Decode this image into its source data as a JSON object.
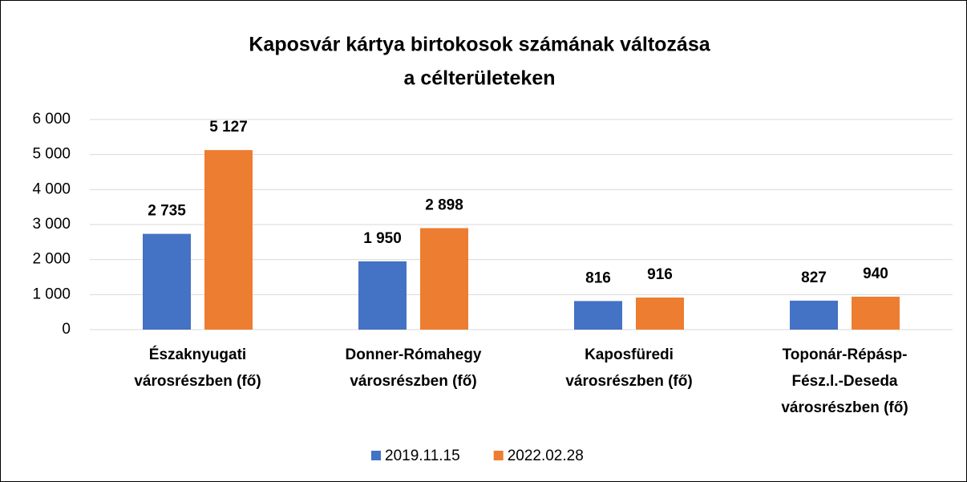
{
  "chart_data": {
    "type": "bar",
    "title": [
      "Kaposvár kártya birtokosok számának változása",
      "a célterületeken"
    ],
    "categories": [
      [
        "Északnyugati",
        "városrészben (fő)"
      ],
      [
        "Donner-Rómahegy",
        "városrészben  (fő)"
      ],
      [
        "Kaposfüredi",
        "városrészben  (fő)"
      ],
      [
        "Toponár-Répásp-",
        "Fész.l.-Deseda",
        "városrészben  (fő)"
      ]
    ],
    "series": [
      {
        "name": "2019.11.15",
        "color": "#4472c4",
        "values": [
          2735,
          1950,
          816,
          827
        ],
        "value_labels": [
          "2 735",
          "1 950",
          "816",
          "827"
        ]
      },
      {
        "name": "2022.02.28",
        "color": "#ed7d31",
        "values": [
          5127,
          2898,
          916,
          940
        ],
        "value_labels": [
          "5 127",
          "2 898",
          "916",
          "940"
        ]
      }
    ],
    "ylim": [
      0,
      6000
    ],
    "yticks": [
      0,
      {
        "value": 1000,
        "label": "1 000"
      },
      {
        "value": 2000,
        "label": "2 000"
      },
      {
        "value": 3000,
        "label": "3 000"
      },
      {
        "value": 4000,
        "label": "4 000"
      },
      {
        "value": 5000,
        "label": "5 000"
      },
      {
        "value": 6000,
        "label": "6 000"
      }
    ],
    "grid": true,
    "legend": "bottom"
  }
}
